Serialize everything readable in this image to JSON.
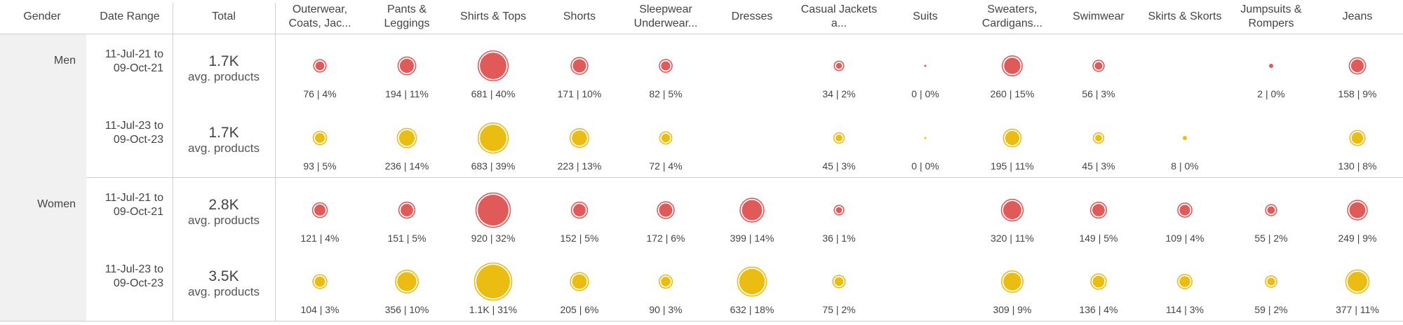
{
  "header": {
    "gender": "Gender",
    "date_range": "Date Range",
    "total": "Total",
    "categories": [
      "Outerwear, Coats, Jac...",
      "Pants & Leggings",
      "Shirts & Tops",
      "Shorts",
      "Sleepwear Underwear...",
      "Dresses",
      "Casual Jackets a...",
      "Suits",
      "Sweaters, Cardigans...",
      "Swimwear",
      "Skirts & Skorts",
      "Jumpsuits & Rompers",
      "Jeans"
    ]
  },
  "groups": [
    {
      "gender": "Men",
      "rows": [
        {
          "date_range": "11-Jul-21 to 09-Oct-21",
          "total": "1.7K",
          "total_label": "avg. products",
          "color": "#e05a5a",
          "labels": [
            "76 | 4%",
            "194 | 11%",
            "681 | 40%",
            "171 | 10%",
            "82 | 5%",
            "",
            "34 | 2%",
            "0 | 0%",
            "260 | 15%",
            "56 | 3%",
            "",
            "2 | 0%",
            "158 | 9%"
          ]
        },
        {
          "date_range": "11-Jul-23 to 09-Oct-23",
          "total": "1.7K",
          "total_label": "avg. products",
          "color": "#ebbc12",
          "labels": [
            "93 | 5%",
            "236 | 14%",
            "683 | 39%",
            "223 | 13%",
            "72 | 4%",
            "",
            "45 | 3%",
            "0 | 0%",
            "195 | 11%",
            "45 | 3%",
            "8 | 0%",
            "",
            "130 | 8%"
          ]
        }
      ]
    },
    {
      "gender": "Women",
      "rows": [
        {
          "date_range": "11-Jul-21 to 09-Oct-21",
          "total": "2.8K",
          "total_label": "avg. products",
          "color": "#e05a5a",
          "labels": [
            "121 | 4%",
            "151 | 5%",
            "920 | 32%",
            "152 | 5%",
            "172 | 6%",
            "399 | 14%",
            "36 | 1%",
            "",
            "320 | 11%",
            "149 | 5%",
            "109 | 4%",
            "55 | 2%",
            "249 | 9%"
          ]
        },
        {
          "date_range": "11-Jul-23 to 09-Oct-23",
          "total": "3.5K",
          "total_label": "avg. products",
          "color": "#ebbc12",
          "labels": [
            "104 | 3%",
            "356 | 10%",
            "1.1K | 31%",
            "205 | 6%",
            "90 | 3%",
            "632 | 18%",
            "75 | 2%",
            "",
            "309 | 9%",
            "136 | 4%",
            "114 | 3%",
            "59 | 2%",
            "377 | 11%"
          ]
        }
      ]
    }
  ],
  "chart_data": {
    "type": "scatter",
    "categories": [
      "Outerwear, Coats, Jac...",
      "Pants & Leggings",
      "Shirts & Tops",
      "Shorts",
      "Sleepwear Underwear...",
      "Dresses",
      "Casual Jackets a...",
      "Suits",
      "Sweaters, Cardigans...",
      "Swimwear",
      "Skirts & Skorts",
      "Jumpsuits & Rompers",
      "Jeans"
    ],
    "series": [
      {
        "gender": "Men",
        "date_range": "11-Jul-21 to 09-Oct-21",
        "values": [
          76,
          194,
          681,
          171,
          82,
          null,
          34,
          0,
          260,
          56,
          null,
          2,
          158
        ],
        "shares": [
          4,
          11,
          40,
          10,
          5,
          null,
          2,
          0,
          15,
          3,
          null,
          0,
          9
        ]
      },
      {
        "gender": "Men",
        "date_range": "11-Jul-23 to 09-Oct-23",
        "values": [
          93,
          236,
          683,
          223,
          72,
          null,
          45,
          0,
          195,
          45,
          8,
          null,
          130
        ],
        "shares": [
          5,
          14,
          39,
          13,
          4,
          null,
          3,
          0,
          11,
          3,
          0,
          null,
          8
        ]
      },
      {
        "gender": "Women",
        "date_range": "11-Jul-21 to 09-Oct-21",
        "values": [
          121,
          151,
          920,
          152,
          172,
          399,
          36,
          null,
          320,
          149,
          109,
          55,
          249
        ],
        "shares": [
          4,
          5,
          32,
          5,
          6,
          14,
          1,
          null,
          11,
          5,
          4,
          2,
          9
        ]
      },
      {
        "gender": "Women",
        "date_range": "11-Jul-23 to 09-Oct-23",
        "values": [
          104,
          356,
          1100,
          205,
          90,
          632,
          75,
          null,
          309,
          136,
          114,
          59,
          377
        ],
        "shares": [
          3,
          10,
          31,
          6,
          3,
          18,
          2,
          null,
          9,
          4,
          3,
          2,
          11
        ]
      }
    ]
  }
}
